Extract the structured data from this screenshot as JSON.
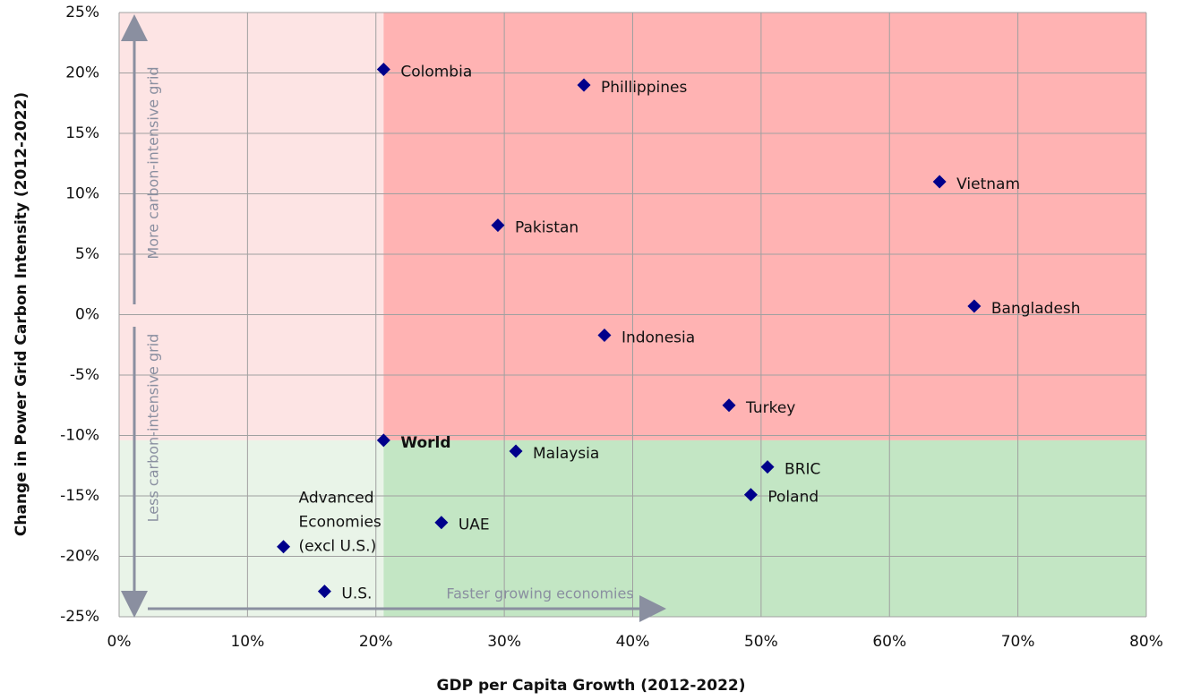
{
  "chart_data": {
    "type": "scatter",
    "x_label": "GDP per Capita Growth (2012-2022)",
    "y_label": "Change in Power Grid Carbon Intensity (2012-2022)",
    "annotations": [
      "More carbon-intensive grid",
      "Less carbon-intensive grid",
      "Faster growing economies"
    ],
    "color": "#00008b",
    "grid": true,
    "xlim": [
      0,
      80
    ],
    "ylim": [
      -25,
      25
    ],
    "xticks": [
      {
        "value": 0,
        "label": "0%"
      },
      {
        "value": 10,
        "label": "10%"
      },
      {
        "value": 20,
        "label": "20%"
      },
      {
        "value": 30,
        "label": "30%"
      },
      {
        "value": 40,
        "label": "40%"
      },
      {
        "value": 50,
        "label": "50%"
      },
      {
        "value": 60,
        "label": "60%"
      },
      {
        "value": 70,
        "label": "70%"
      },
      {
        "value": 80,
        "label": "80%"
      }
    ],
    "yticks": [
      {
        "value": -25,
        "label": "-25%"
      },
      {
        "value": -20,
        "label": "-20%"
      },
      {
        "value": -15,
        "label": "-15%"
      },
      {
        "value": -10,
        "label": "-10%"
      },
      {
        "value": -5,
        "label": "-5%"
      },
      {
        "value": 0,
        "label": "0%"
      },
      {
        "value": 5,
        "label": "5%"
      },
      {
        "value": 10,
        "label": "10%"
      },
      {
        "value": 15,
        "label": "15%"
      },
      {
        "value": 20,
        "label": "20%"
      },
      {
        "value": 25,
        "label": "25%"
      }
    ],
    "points": [
      {
        "label": "Colombia",
        "x": 20.6,
        "y": 20.3
      },
      {
        "label": "Phillippines",
        "x": 36.2,
        "y": 19.0
      },
      {
        "label": "Vietnam",
        "x": 63.9,
        "y": 11.0
      },
      {
        "label": "Pakistan",
        "x": 29.5,
        "y": 7.4
      },
      {
        "label": "Bangladesh",
        "x": 66.6,
        "y": 0.7
      },
      {
        "label": "Indonesia",
        "x": 37.8,
        "y": -1.7
      },
      {
        "label": "Turkey",
        "x": 47.5,
        "y": -7.5
      },
      {
        "label": "World",
        "x": 20.6,
        "y": -10.4,
        "bold": true
      },
      {
        "label": "Malaysia",
        "x": 30.9,
        "y": -11.3
      },
      {
        "label": "BRIC",
        "x": 50.5,
        "y": -12.6
      },
      {
        "label": "Poland",
        "x": 49.2,
        "y": -14.9
      },
      {
        "label": "UAE",
        "x": 25.1,
        "y": -17.2
      },
      {
        "label": [
          "Advanced",
          "Economies",
          "(excl U.S.)"
        ],
        "x": 12.8,
        "y": -19.2
      },
      {
        "label": "U.S.",
        "x": 16.0,
        "y": -22.9
      }
    ]
  }
}
